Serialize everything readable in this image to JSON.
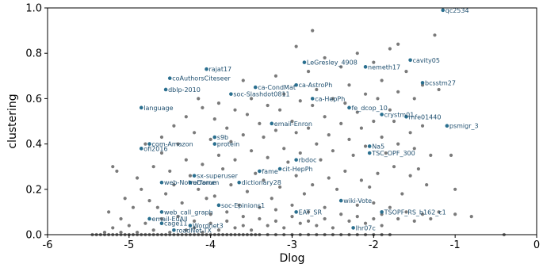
{
  "chart_data": {
    "type": "scatter",
    "xlabel": "Dlog",
    "ylabel": "clustering",
    "xlim": [
      -6,
      0
    ],
    "ylim": [
      0,
      1.0
    ],
    "xticks": [
      "-6",
      "-5",
      "-4",
      "-3",
      "-2",
      "-1",
      "0"
    ],
    "yticks": [
      "0.0",
      "0.2",
      "0.4",
      "0.6",
      "0.8",
      "1.0"
    ],
    "grid": false,
    "colors": {
      "background_points": "#7a7a7a",
      "labeled_points": "#2a6f8f",
      "label_text": "#1f4f6f"
    },
    "background_points": [
      [
        -5.45,
        0.0
      ],
      [
        -5.4,
        0.0
      ],
      [
        -5.35,
        0.0
      ],
      [
        -5.3,
        0.0
      ],
      [
        -5.25,
        0.0
      ],
      [
        -5.2,
        0.0
      ],
      [
        -5.15,
        0.0
      ],
      [
        -5.1,
        0.0
      ],
      [
        -5.05,
        0.0
      ],
      [
        -5.0,
        0.0
      ],
      [
        -4.95,
        0.0
      ],
      [
        -4.9,
        0.0
      ],
      [
        -4.85,
        0.0
      ],
      [
        -4.8,
        0.0
      ],
      [
        -4.75,
        0.0
      ],
      [
        -4.7,
        0.0
      ],
      [
        -4.65,
        0.0
      ],
      [
        -4.6,
        0.0
      ],
      [
        -4.55,
        0.0
      ],
      [
        -4.5,
        0.0
      ],
      [
        -4.45,
        0.0
      ],
      [
        -4.4,
        0.0
      ],
      [
        -4.35,
        0.0
      ],
      [
        -4.3,
        0.0
      ],
      [
        -4.25,
        0.0
      ],
      [
        -4.2,
        0.0
      ],
      [
        -4.15,
        0.0
      ],
      [
        -4.1,
        0.0
      ],
      [
        -4.05,
        0.0
      ],
      [
        -4.0,
        0.0
      ],
      [
        -3.95,
        0.0
      ],
      [
        -3.9,
        0.0
      ],
      [
        -3.85,
        0.0
      ],
      [
        -3.8,
        0.0
      ],
      [
        -3.75,
        0.0
      ],
      [
        -3.7,
        0.0
      ],
      [
        -3.65,
        0.0
      ],
      [
        -3.6,
        0.0
      ],
      [
        -3.55,
        0.0
      ],
      [
        -3.5,
        0.0
      ],
      [
        -3.45,
        0.0
      ],
      [
        -3.4,
        0.0
      ],
      [
        -3.3,
        0.0
      ],
      [
        -3.2,
        0.0
      ],
      [
        -3.1,
        0.0
      ],
      [
        -3.0,
        0.0
      ],
      [
        -2.9,
        0.0
      ],
      [
        -2.8,
        0.0
      ],
      [
        -2.7,
        0.0
      ],
      [
        -2.6,
        0.0
      ],
      [
        -2.5,
        0.0
      ],
      [
        -2.4,
        0.0
      ],
      [
        -2.3,
        0.0
      ],
      [
        -2.2,
        0.0
      ],
      [
        -2.1,
        0.0
      ],
      [
        -2.0,
        0.0
      ],
      [
        -1.9,
        0.0
      ],
      [
        -1.8,
        0.0
      ],
      [
        -0.4,
        0.0
      ],
      [
        -5.3,
        0.01
      ],
      [
        -5.1,
        0.01
      ],
      [
        -4.9,
        0.01
      ],
      [
        -4.7,
        0.02
      ],
      [
        -4.5,
        0.01
      ],
      [
        -4.3,
        0.02
      ],
      [
        -4.2,
        0.03
      ],
      [
        -4.1,
        0.01
      ],
      [
        -3.9,
        0.02
      ],
      [
        -3.7,
        0.03
      ],
      [
        -3.5,
        0.02
      ],
      [
        -3.3,
        0.04
      ],
      [
        -3.1,
        0.03
      ],
      [
        -2.9,
        0.05
      ],
      [
        -2.7,
        0.04
      ],
      [
        -2.5,
        0.03
      ],
      [
        -2.3,
        0.06
      ],
      [
        -2.1,
        0.05
      ],
      [
        -1.9,
        0.04
      ],
      [
        -5.2,
        0.03
      ],
      [
        -5.0,
        0.04
      ],
      [
        -4.8,
        0.05
      ],
      [
        -4.6,
        0.07
      ],
      [
        -4.4,
        0.08
      ],
      [
        -4.2,
        0.06
      ],
      [
        -4.0,
        0.09
      ],
      [
        -3.8,
        0.1
      ],
      [
        -3.6,
        0.08
      ],
      [
        -3.4,
        0.12
      ],
      [
        -3.2,
        0.11
      ],
      [
        -3.0,
        0.13
      ],
      [
        -2.8,
        0.1
      ],
      [
        -2.6,
        0.12
      ],
      [
        -2.4,
        0.15
      ],
      [
        -2.2,
        0.13
      ],
      [
        -2.0,
        0.14
      ],
      [
        -1.8,
        0.12
      ],
      [
        -1.6,
        0.1
      ],
      [
        -1.4,
        0.09
      ],
      [
        -1.2,
        0.1
      ],
      [
        -1.0,
        0.09
      ],
      [
        -0.8,
        0.08
      ],
      [
        -5.1,
        0.07
      ],
      [
        -4.95,
        0.12
      ],
      [
        -4.75,
        0.15
      ],
      [
        -4.55,
        0.18
      ],
      [
        -4.35,
        0.14
      ],
      [
        -4.15,
        0.2
      ],
      [
        -3.95,
        0.17
      ],
      [
        -3.75,
        0.22
      ],
      [
        -3.55,
        0.19
      ],
      [
        -3.35,
        0.24
      ],
      [
        -3.15,
        0.21
      ],
      [
        -2.95,
        0.26
      ],
      [
        -2.75,
        0.22
      ],
      [
        -2.55,
        0.25
      ],
      [
        -2.35,
        0.28
      ],
      [
        -2.15,
        0.24
      ],
      [
        -1.95,
        0.27
      ],
      [
        -1.75,
        0.3
      ],
      [
        -1.55,
        0.26
      ],
      [
        -1.35,
        0.22
      ],
      [
        -5.2,
        0.3
      ],
      [
        -5.15,
        0.28
      ],
      [
        -4.9,
        0.25
      ],
      [
        -4.7,
        0.3
      ],
      [
        -4.5,
        0.28
      ],
      [
        -4.3,
        0.33
      ],
      [
        -4.1,
        0.31
      ],
      [
        -3.9,
        0.35
      ],
      [
        -3.7,
        0.33
      ],
      [
        -3.5,
        0.37
      ],
      [
        -3.3,
        0.34
      ],
      [
        -3.1,
        0.38
      ],
      [
        -2.9,
        0.36
      ],
      [
        -2.7,
        0.4
      ],
      [
        -2.5,
        0.37
      ],
      [
        -2.3,
        0.42
      ],
      [
        -2.1,
        0.39
      ],
      [
        -1.9,
        0.43
      ],
      [
        -1.7,
        0.4
      ],
      [
        -1.5,
        0.38
      ],
      [
        -1.3,
        0.35
      ],
      [
        -4.8,
        0.4
      ],
      [
        -4.6,
        0.43
      ],
      [
        -4.4,
        0.4
      ],
      [
        -4.2,
        0.45
      ],
      [
        -4.0,
        0.42
      ],
      [
        -3.8,
        0.47
      ],
      [
        -3.6,
        0.44
      ],
      [
        -3.4,
        0.49
      ],
      [
        -3.2,
        0.46
      ],
      [
        -3.0,
        0.5
      ],
      [
        -2.8,
        0.47
      ],
      [
        -2.6,
        0.52
      ],
      [
        -2.4,
        0.49
      ],
      [
        -2.2,
        0.54
      ],
      [
        -2.0,
        0.5
      ],
      [
        -1.8,
        0.55
      ],
      [
        -1.6,
        0.52
      ],
      [
        -1.4,
        0.48
      ],
      [
        -4.1,
        0.56
      ],
      [
        -3.9,
        0.58
      ],
      [
        -3.7,
        0.55
      ],
      [
        -3.5,
        0.6
      ],
      [
        -3.3,
        0.57
      ],
      [
        -3.1,
        0.62
      ],
      [
        -2.9,
        0.59
      ],
      [
        -2.7,
        0.64
      ],
      [
        -2.5,
        0.6
      ],
      [
        -2.3,
        0.66
      ],
      [
        -2.1,
        0.62
      ],
      [
        -1.9,
        0.68
      ],
      [
        -1.7,
        0.63
      ],
      [
        -1.5,
        0.6
      ],
      [
        -3.6,
        0.68
      ],
      [
        -3.2,
        0.7
      ],
      [
        -2.8,
        0.72
      ],
      [
        -2.6,
        0.78
      ],
      [
        -2.4,
        0.74
      ],
      [
        -2.2,
        0.8
      ],
      [
        -2.0,
        0.76
      ],
      [
        -1.8,
        0.82
      ],
      [
        -1.6,
        0.72
      ],
      [
        -1.4,
        0.66
      ],
      [
        -1.2,
        0.64
      ],
      [
        -2.75,
        0.9
      ],
      [
        -1.25,
        0.88
      ],
      [
        -2.95,
        0.83
      ],
      [
        -1.7,
        0.84
      ],
      [
        -1.05,
        0.35
      ],
      [
        -1.0,
        0.2
      ],
      [
        -4.65,
        0.12
      ],
      [
        -4.45,
        0.22
      ],
      [
        -4.25,
        0.26
      ],
      [
        -4.05,
        0.16
      ],
      [
        -3.85,
        0.29
      ],
      [
        -3.65,
        0.13
      ],
      [
        -3.45,
        0.27
      ],
      [
        -3.25,
        0.16
      ],
      [
        -3.05,
        0.32
      ],
      [
        -2.85,
        0.18
      ],
      [
        -2.65,
        0.33
      ],
      [
        -2.45,
        0.2
      ],
      [
        -2.25,
        0.35
      ],
      [
        -2.05,
        0.21
      ],
      [
        -1.85,
        0.36
      ],
      [
        -1.65,
        0.18
      ],
      [
        -1.45,
        0.29
      ],
      [
        -4.0,
        0.05
      ],
      [
        -3.8,
        0.06
      ],
      [
        -3.6,
        0.04
      ],
      [
        -3.4,
        0.07
      ],
      [
        -3.2,
        0.06
      ],
      [
        -3.0,
        0.08
      ],
      [
        -2.8,
        0.06
      ],
      [
        -2.6,
        0.07
      ],
      [
        -2.4,
        0.09
      ],
      [
        -2.2,
        0.08
      ],
      [
        -2.0,
        0.07
      ],
      [
        -1.9,
        0.09
      ],
      [
        -1.7,
        0.07
      ],
      [
        -1.5,
        0.06
      ],
      [
        -1.3,
        0.07
      ],
      [
        -5.25,
        0.1
      ],
      [
        -5.05,
        0.16
      ],
      [
        -4.85,
        0.2
      ],
      [
        -4.6,
        0.36
      ],
      [
        -4.45,
        0.48
      ],
      [
        -4.3,
        0.52
      ],
      [
        -4.15,
        0.6
      ],
      [
        -3.95,
        0.51
      ],
      [
        -3.75,
        0.41
      ],
      [
        -3.55,
        0.53
      ],
      [
        -3.35,
        0.43
      ],
      [
        -3.15,
        0.55
      ],
      [
        -2.95,
        0.45
      ],
      [
        -2.75,
        0.57
      ],
      [
        -2.55,
        0.44
      ],
      [
        -2.35,
        0.58
      ],
      [
        -2.15,
        0.47
      ],
      [
        -1.95,
        0.6
      ],
      [
        -1.75,
        0.5
      ],
      [
        -1.55,
        0.45
      ]
    ],
    "labeled_points": [
      {
        "label": "qc2534",
        "x": -1.15,
        "y": 0.99
      },
      {
        "label": "LeGresley_4908",
        "x": -2.85,
        "y": 0.76
      },
      {
        "label": "nemeth17",
        "x": -2.1,
        "y": 0.74
      },
      {
        "label": "cavity05",
        "x": -1.55,
        "y": 0.77
      },
      {
        "label": "rajat17",
        "x": -4.05,
        "y": 0.73
      },
      {
        "label": "coAuthorsCiteseer",
        "x": -4.5,
        "y": 0.69
      },
      {
        "label": "bcsstm27",
        "x": -1.4,
        "y": 0.67
      },
      {
        "label": "ca-AstroPh",
        "x": -2.95,
        "y": 0.66
      },
      {
        "label": "dblp-2010",
        "x": -4.55,
        "y": 0.64
      },
      {
        "label": "ca-CondMat",
        "x": -3.45,
        "y": 0.65
      },
      {
        "label": "soc-Slashdot0811",
        "x": -3.75,
        "y": 0.62
      },
      {
        "label": "ca-HepPh",
        "x": -2.75,
        "y": 0.6
      },
      {
        "label": "language",
        "x": -4.85,
        "y": 0.56
      },
      {
        "label": "fe_dcop_10",
        "x": -2.3,
        "y": 0.56
      },
      {
        "label": "crystm01",
        "x": -1.9,
        "y": 0.53
      },
      {
        "label": "mfe01440",
        "x": -1.6,
        "y": 0.52
      },
      {
        "label": "email-Enron",
        "x": -3.25,
        "y": 0.49
      },
      {
        "label": "psmigr_3",
        "x": -1.1,
        "y": 0.48
      },
      {
        "label": "s9b",
        "x": -3.95,
        "y": 0.43
      },
      {
        "label": "com-Amazon",
        "x": -4.75,
        "y": 0.4
      },
      {
        "label": "protein",
        "x": -3.95,
        "y": 0.4
      },
      {
        "label": "ofi2016",
        "x": -4.85,
        "y": 0.38
      },
      {
        "label": "Na5",
        "x": -2.05,
        "y": 0.39
      },
      {
        "label": "TSC_OPF_300",
        "x": -2.05,
        "y": 0.36
      },
      {
        "label": "rbdoc",
        "x": -2.95,
        "y": 0.33
      },
      {
        "label": "cit-HepPh",
        "x": -3.15,
        "y": 0.29
      },
      {
        "label": "fame",
        "x": -3.4,
        "y": 0.28
      },
      {
        "label": "sx-superuser",
        "x": -4.2,
        "y": 0.26
      },
      {
        "label": "web-NotreDame",
        "x": -4.6,
        "y": 0.23
      },
      {
        "label": "ucforum",
        "x": -4.25,
        "y": 0.23
      },
      {
        "label": "dictionary28",
        "x": -3.65,
        "y": 0.23
      },
      {
        "label": "wiki-Vote",
        "x": -2.4,
        "y": 0.15
      },
      {
        "label": "soc-Epinions1",
        "x": -3.9,
        "y": 0.13
      },
      {
        "label": "EAT_SR",
        "x": -2.95,
        "y": 0.1
      },
      {
        "label": "TSOPF_RS_b162_c1",
        "x": -1.9,
        "y": 0.1
      },
      {
        "label": "web_call_graph",
        "x": -4.6,
        "y": 0.1
      },
      {
        "label": "email-EuAll",
        "x": -4.75,
        "y": 0.07
      },
      {
        "label": "lhr07c",
        "x": -2.25,
        "y": 0.03
      },
      {
        "label": "cage11",
        "x": -4.6,
        "y": 0.05
      },
      {
        "label": "Wordnet3",
        "x": -4.25,
        "y": 0.04
      },
      {
        "label": "roadNet-TX",
        "x": -4.45,
        "y": 0.02
      }
    ]
  }
}
